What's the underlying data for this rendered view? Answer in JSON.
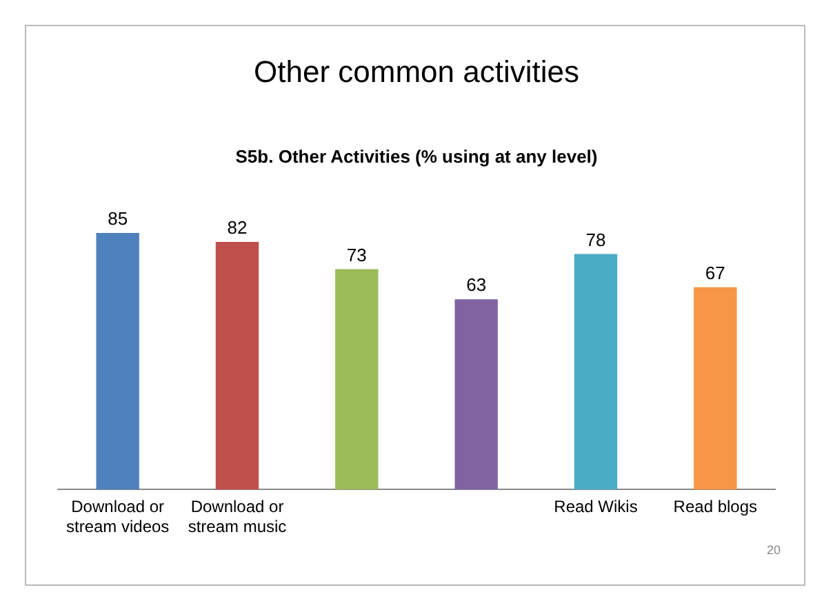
{
  "chart_data": {
    "type": "bar",
    "title": "Other common activities",
    "subtitle": "S5b. Other Activities (% using at any level)",
    "categories": [
      "Download or stream videos",
      "Download or stream music",
      null,
      null,
      "Read Wikis",
      "Read blogs"
    ],
    "values": [
      85,
      82,
      73,
      63,
      78,
      67
    ],
    "colors": [
      "#4f81bd",
      "#c0504d",
      "#9bbb59",
      "#8064a2",
      "#4bacc6",
      "#f79646"
    ],
    "data_labels": true,
    "grid": false,
    "legend": false,
    "annotations": [
      "20"
    ]
  }
}
